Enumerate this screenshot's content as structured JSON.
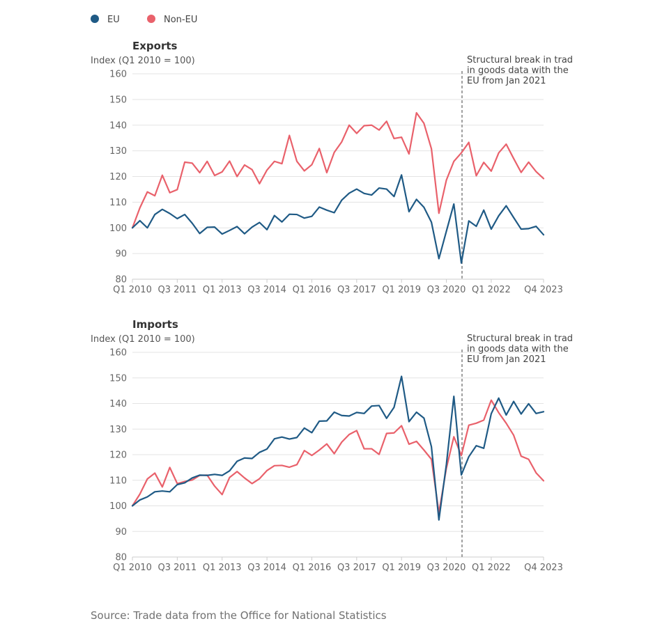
{
  "legend": [
    {
      "label": "EU",
      "color": "#1f5a85"
    },
    {
      "label": "Non-EU",
      "color": "#e9616b"
    }
  ],
  "source": "Source: Trade data from the Office for National Statistics",
  "chart_data": [
    {
      "type": "line",
      "title": "Exports",
      "ylabel": "Index (Q1 2010 = 100)",
      "ylim": [
        80,
        160
      ],
      "yticks": [
        80,
        90,
        100,
        110,
        120,
        130,
        140,
        150,
        160
      ],
      "xtick_labels": [
        {
          "index": 0,
          "label": "Q1 2010"
        },
        {
          "index": 6,
          "label": "Q3 2011"
        },
        {
          "index": 12,
          "label": "Q1 2013"
        },
        {
          "index": 18,
          "label": "Q3 2014"
        },
        {
          "index": 24,
          "label": "Q1 2016"
        },
        {
          "index": 30,
          "label": "Q3 2017"
        },
        {
          "index": 36,
          "label": "Q1 2019"
        },
        {
          "index": 42,
          "label": "Q3 2020"
        },
        {
          "index": 48,
          "label": "Q1 2022"
        },
        {
          "index": 55,
          "label": "Q4 2023"
        }
      ],
      "grid": true,
      "legend_position": "top-left",
      "annotation": {
        "text": [
          "Structural break in trad",
          "in goods data with the",
          "EU from Jan 2021"
        ],
        "at_index": 44
      }
    },
    {
      "type": "line",
      "title": "Imports",
      "ylabel": "Index (Q1 2010 = 100)",
      "ylim": [
        80,
        160
      ],
      "yticks": [
        80,
        90,
        100,
        110,
        120,
        130,
        140,
        150,
        160
      ],
      "xtick_labels": [
        {
          "index": 0,
          "label": "Q1 2010"
        },
        {
          "index": 6,
          "label": "Q3 2011"
        },
        {
          "index": 12,
          "label": "Q1 2013"
        },
        {
          "index": 18,
          "label": "Q3 2014"
        },
        {
          "index": 24,
          "label": "Q1 2016"
        },
        {
          "index": 30,
          "label": "Q3 2017"
        },
        {
          "index": 36,
          "label": "Q1 2019"
        },
        {
          "index": 42,
          "label": "Q3 2020"
        },
        {
          "index": 48,
          "label": "Q1 2022"
        },
        {
          "index": 55,
          "label": "Q4 2023"
        }
      ],
      "grid": true,
      "legend_position": "top-left",
      "annotation": {
        "text": [
          "Structural break in trad",
          "in goods data with the",
          "EU from Jan 2021"
        ],
        "at_index": 44
      }
    }
  ],
  "series_data": {
    "exports_eu": [
      100,
      102.8,
      100,
      105.2,
      107.2,
      105.6,
      103.6,
      105.2,
      101.8,
      97.8,
      100.2,
      100.3,
      97.6,
      99,
      100.5,
      97.7,
      100.3,
      102.1,
      99.3,
      104.8,
      102.3,
      105.3,
      105.2,
      103.8,
      104.5,
      108.1,
      106.9,
      105.9,
      110.8,
      113.5,
      115.1,
      113.4,
      112.8,
      115.5,
      115.1,
      112.2,
      120.6,
      106.3,
      111.1,
      108,
      102.2,
      88,
      98.7,
      109.3,
      86.3,
      102.7,
      100.6,
      106.9,
      99.5,
      104.7,
      108.6,
      104,
      99.5,
      99.7,
      100.6,
      97.3
    ],
    "exports_noneu": [
      100,
      107.8,
      114,
      112.5,
      120.5,
      113.7,
      114.9,
      125.6,
      125.2,
      121.5,
      125.9,
      120.4,
      121.8,
      126,
      120,
      124.5,
      122.7,
      117.2,
      122.5,
      125.9,
      125,
      136,
      125.9,
      122.2,
      124.6,
      130.9,
      121.5,
      129.4,
      133.5,
      140,
      136.8,
      139.8,
      140,
      138.1,
      141.5,
      134.8,
      135.3,
      128.8,
      144.8,
      140.7,
      130.8,
      105.7,
      118.6,
      125.9,
      129.2,
      133.3,
      120.3,
      125.5,
      122.1,
      129.2,
      132.6,
      127,
      121.6,
      125.6,
      121.9,
      119.2
    ],
    "imports_eu": [
      100,
      102.3,
      103.5,
      105.5,
      105.8,
      105.5,
      108.3,
      109,
      110.9,
      112,
      111.9,
      112.3,
      111.9,
      113.7,
      117.4,
      118.7,
      118.5,
      120.9,
      122.2,
      126.2,
      126.9,
      126.1,
      126.7,
      130.4,
      128.6,
      133.1,
      133.2,
      136.6,
      135.3,
      135.1,
      136.5,
      136.1,
      139,
      139.2,
      134.2,
      138.5,
      150.6,
      132.9,
      136.6,
      134.3,
      123.1,
      94.5,
      116.2,
      142.8,
      112.1,
      119.2,
      123.5,
      122.5,
      136,
      142.1,
      135.5,
      140.8,
      135.9,
      139.9,
      136.1,
      136.8
    ],
    "imports_noneu": [
      100,
      104.6,
      110.5,
      112.8,
      107.4,
      115,
      108.7,
      109.5,
      110.1,
      111.9,
      112,
      107.7,
      104.4,
      111.1,
      113.4,
      110.9,
      108.7,
      110.6,
      113.8,
      115.7,
      115.8,
      115.1,
      116.1,
      121.6,
      119.7,
      121.8,
      124.2,
      120.4,
      124.9,
      127.9,
      129.4,
      122.3,
      122.3,
      120.1,
      128.3,
      128.5,
      131.3,
      124.1,
      125.2,
      121.8,
      118.2,
      97.3,
      114.7,
      127,
      119.7,
      131.5,
      132.3,
      133.5,
      141.3,
      136.4,
      132.3,
      127.6,
      119.4,
      118.2,
      112.9,
      109.8
    ]
  }
}
